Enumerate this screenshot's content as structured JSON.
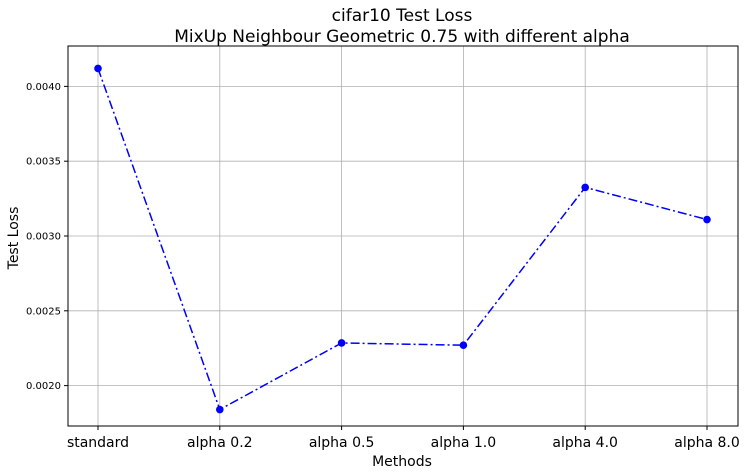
{
  "chart_data": {
    "type": "line",
    "title": "cifar10 Test Loss",
    "subtitle": "MixUp Neighbour Geometric 0.75 with different alpha",
    "xlabel": "Methods",
    "ylabel": "Test Loss",
    "categories": [
      "standard",
      "alpha 0.2",
      "alpha 0.5",
      "alpha 1.0",
      "alpha 4.0",
      "alpha 8.0"
    ],
    "values": [
      0.00412,
      0.00184,
      0.002285,
      0.00227,
      0.003325,
      0.00311
    ],
    "ylim": [
      0.00173,
      0.00427
    ],
    "yticks": [
      0.002,
      0.0025,
      0.003,
      0.0035,
      0.004
    ],
    "ytick_labels": [
      "0.0020",
      "0.0025",
      "0.0030",
      "0.0035",
      "0.0040"
    ],
    "grid": true,
    "line_style": "dash-dot",
    "marker": "circle",
    "colors": {
      "line": "#0000ff",
      "grid": "#b0b0b0",
      "axes": "#000000"
    }
  }
}
